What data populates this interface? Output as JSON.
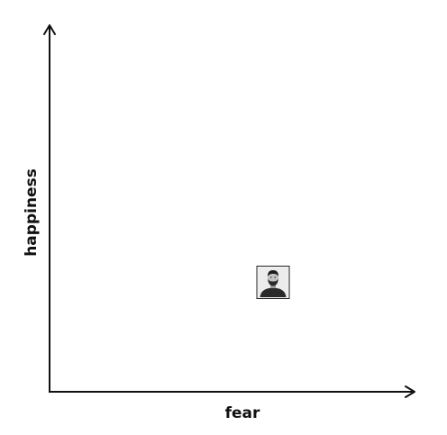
{
  "chart_data": {
    "type": "scatter",
    "xlabel": "fear",
    "ylabel": "happiness",
    "xlim": [
      0,
      1
    ],
    "ylim": [
      0,
      1
    ],
    "grid": false,
    "points": [
      {
        "x": 0.62,
        "y": 0.3,
        "marker": "person-portrait"
      }
    ]
  }
}
